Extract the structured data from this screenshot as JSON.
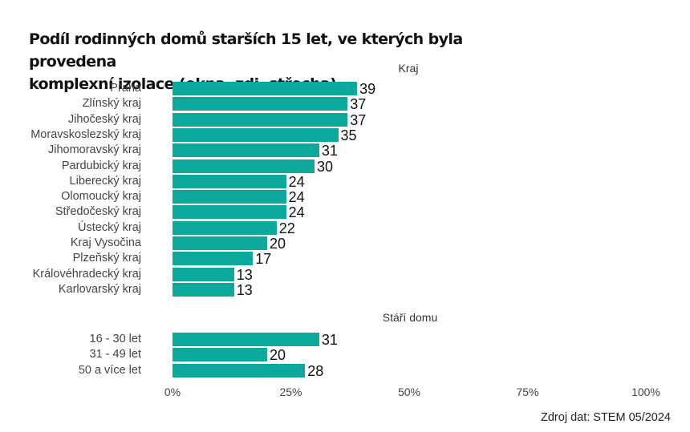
{
  "chart_data": {
    "type": "bar",
    "orientation": "horizontal",
    "title": "Podíl rodinných domů starších 15 let, ve kterých byla provedena komplexní izolace (okna, zdi, střecha)",
    "title_lines": [
      "Podíl rodinných domů starších 15 let, ve kterých byla provedena",
      "komplexní izolace (okna, zdi, střecha)"
    ],
    "xlim": [
      0,
      100
    ],
    "x_ticks": [
      "0%",
      "25%",
      "50%",
      "75%",
      "100%"
    ],
    "x_tick_values": [
      0,
      25,
      50,
      75,
      100
    ],
    "grid": false,
    "bar_color": "#0aa99b",
    "panels": [
      {
        "title": "Kraj",
        "categories": [
          "Praha",
          "Zlínský kraj",
          "Jihočeský kraj",
          "Moravskoslezský kraj",
          "Jihomoravský kraj",
          "Pardubický kraj",
          "Liberecký kraj",
          "Olomoucký kraj",
          "Středočeský kraj",
          "Ústecký kraj",
          "Kraj Vysočina",
          "Plzeňský kraj",
          "Královéhradecký kraj",
          "Karlovarský kraj"
        ],
        "values": [
          39,
          37,
          37,
          35,
          31,
          30,
          24,
          24,
          24,
          22,
          20,
          17,
          13,
          13
        ]
      },
      {
        "title": "Stáří domu",
        "categories": [
          "16 - 30 let",
          "31 - 49 let",
          "50 a více let"
        ],
        "values": [
          31,
          20,
          28
        ]
      }
    ],
    "source": "Zdroj dat: STEM 05/2024"
  }
}
